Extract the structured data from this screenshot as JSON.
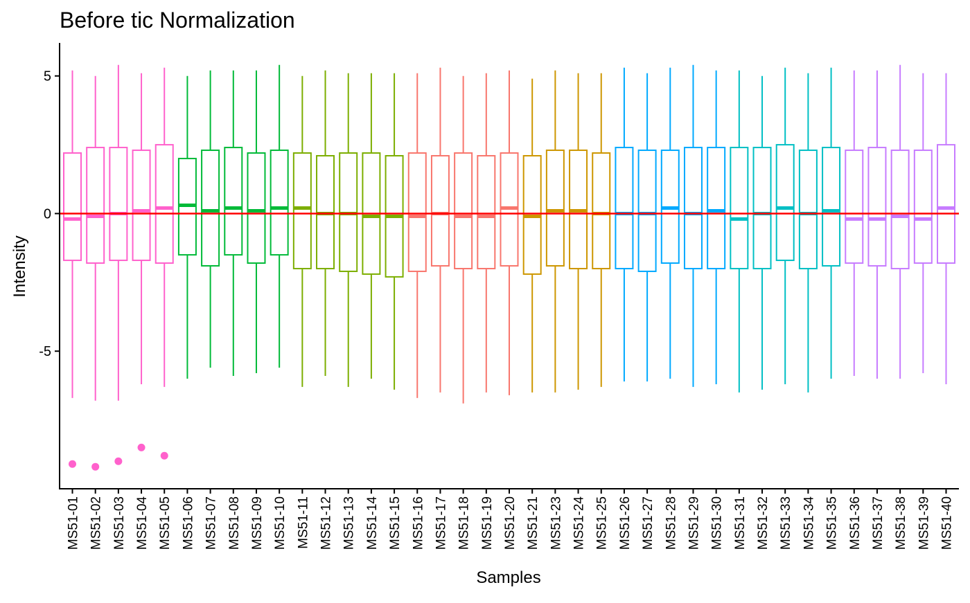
{
  "chart_data": {
    "type": "boxplot",
    "title": "Before tic Normalization",
    "xlabel": "Samples",
    "ylabel": "Intensity",
    "ylim": [
      -10,
      6.2
    ],
    "yticks": [
      5,
      0,
      -5
    ],
    "ytick_labels": [
      "5",
      "0",
      "-5"
    ],
    "reference_line": {
      "y": 0,
      "color": "#ff0000"
    },
    "legend": "none",
    "grid": false,
    "samples": [
      {
        "name": "MS51-01",
        "group": 0,
        "whisker_low": -6.7,
        "q1": -1.7,
        "median": -0.2,
        "q3": 2.2,
        "whisker_high": 5.2,
        "outliers": [
          -9.1
        ]
      },
      {
        "name": "MS51-02",
        "group": 0,
        "whisker_low": -6.8,
        "q1": -1.8,
        "median": -0.1,
        "q3": 2.4,
        "whisker_high": 5.0,
        "outliers": [
          -9.2
        ]
      },
      {
        "name": "MS51-03",
        "group": 0,
        "whisker_low": -6.8,
        "q1": -1.7,
        "median": 0.0,
        "q3": 2.4,
        "whisker_high": 5.4,
        "outliers": [
          -9.0
        ]
      },
      {
        "name": "MS51-04",
        "group": 0,
        "whisker_low": -6.2,
        "q1": -1.7,
        "median": 0.1,
        "q3": 2.3,
        "whisker_high": 5.1,
        "outliers": [
          -8.5
        ]
      },
      {
        "name": "MS51-05",
        "group": 0,
        "whisker_low": -6.3,
        "q1": -1.8,
        "median": 0.2,
        "q3": 2.5,
        "whisker_high": 5.3,
        "outliers": [
          -8.8
        ]
      },
      {
        "name": "MS51-06",
        "group": 1,
        "whisker_low": -6.0,
        "q1": -1.5,
        "median": 0.3,
        "q3": 2.0,
        "whisker_high": 5.0,
        "outliers": []
      },
      {
        "name": "MS51-07",
        "group": 1,
        "whisker_low": -5.6,
        "q1": -1.9,
        "median": 0.1,
        "q3": 2.3,
        "whisker_high": 5.2,
        "outliers": []
      },
      {
        "name": "MS51-08",
        "group": 1,
        "whisker_low": -5.9,
        "q1": -1.5,
        "median": 0.2,
        "q3": 2.4,
        "whisker_high": 5.2,
        "outliers": []
      },
      {
        "name": "MS51-09",
        "group": 1,
        "whisker_low": -5.8,
        "q1": -1.8,
        "median": 0.1,
        "q3": 2.2,
        "whisker_high": 5.2,
        "outliers": []
      },
      {
        "name": "MS51-10",
        "group": 1,
        "whisker_low": -5.6,
        "q1": -1.5,
        "median": 0.2,
        "q3": 2.3,
        "whisker_high": 5.4,
        "outliers": []
      },
      {
        "name": "MS51-11",
        "group": 2,
        "whisker_low": -6.3,
        "q1": -2.0,
        "median": 0.2,
        "q3": 2.2,
        "whisker_high": 5.0,
        "outliers": []
      },
      {
        "name": "MS51-12",
        "group": 2,
        "whisker_low": -5.9,
        "q1": -2.0,
        "median": 0.0,
        "q3": 2.1,
        "whisker_high": 5.2,
        "outliers": []
      },
      {
        "name": "MS51-13",
        "group": 2,
        "whisker_low": -6.3,
        "q1": -2.1,
        "median": 0.0,
        "q3": 2.2,
        "whisker_high": 5.1,
        "outliers": []
      },
      {
        "name": "MS51-14",
        "group": 2,
        "whisker_low": -6.0,
        "q1": -2.2,
        "median": -0.1,
        "q3": 2.2,
        "whisker_high": 5.1,
        "outliers": []
      },
      {
        "name": "MS51-15",
        "group": 2,
        "whisker_low": -6.4,
        "q1": -2.3,
        "median": -0.1,
        "q3": 2.1,
        "whisker_high": 5.1,
        "outliers": []
      },
      {
        "name": "MS51-16",
        "group": 3,
        "whisker_low": -6.7,
        "q1": -2.1,
        "median": -0.1,
        "q3": 2.2,
        "whisker_high": 5.1,
        "outliers": []
      },
      {
        "name": "MS51-17",
        "group": 3,
        "whisker_low": -6.5,
        "q1": -1.9,
        "median": 0.0,
        "q3": 2.1,
        "whisker_high": 5.3,
        "outliers": []
      },
      {
        "name": "MS51-18",
        "group": 3,
        "whisker_low": -6.9,
        "q1": -2.0,
        "median": -0.1,
        "q3": 2.2,
        "whisker_high": 5.0,
        "outliers": []
      },
      {
        "name": "MS51-19",
        "group": 3,
        "whisker_low": -6.5,
        "q1": -2.0,
        "median": -0.1,
        "q3": 2.1,
        "whisker_high": 5.1,
        "outliers": []
      },
      {
        "name": "MS51-20",
        "group": 3,
        "whisker_low": -6.6,
        "q1": -1.9,
        "median": 0.2,
        "q3": 2.2,
        "whisker_high": 5.2,
        "outliers": []
      },
      {
        "name": "MS51-21",
        "group": 4,
        "whisker_low": -6.5,
        "q1": -2.2,
        "median": -0.1,
        "q3": 2.1,
        "whisker_high": 4.9,
        "outliers": []
      },
      {
        "name": "MS51-23",
        "group": 4,
        "whisker_low": -6.5,
        "q1": -1.9,
        "median": 0.1,
        "q3": 2.3,
        "whisker_high": 5.2,
        "outliers": []
      },
      {
        "name": "MS51-24",
        "group": 4,
        "whisker_low": -6.4,
        "q1": -2.0,
        "median": 0.1,
        "q3": 2.3,
        "whisker_high": 5.1,
        "outliers": []
      },
      {
        "name": "MS51-25",
        "group": 4,
        "whisker_low": -6.3,
        "q1": -2.0,
        "median": 0.0,
        "q3": 2.2,
        "whisker_high": 5.1,
        "outliers": []
      },
      {
        "name": "MS51-26",
        "group": 5,
        "whisker_low": -6.1,
        "q1": -2.0,
        "median": 0.0,
        "q3": 2.4,
        "whisker_high": 5.3,
        "outliers": []
      },
      {
        "name": "MS51-27",
        "group": 5,
        "whisker_low": -6.1,
        "q1": -2.1,
        "median": 0.0,
        "q3": 2.3,
        "whisker_high": 5.1,
        "outliers": []
      },
      {
        "name": "MS51-28",
        "group": 5,
        "whisker_low": -6.0,
        "q1": -1.8,
        "median": 0.2,
        "q3": 2.3,
        "whisker_high": 5.3,
        "outliers": []
      },
      {
        "name": "MS51-29",
        "group": 5,
        "whisker_low": -6.3,
        "q1": -2.0,
        "median": 0.0,
        "q3": 2.4,
        "whisker_high": 5.4,
        "outliers": []
      },
      {
        "name": "MS51-30",
        "group": 5,
        "whisker_low": -6.2,
        "q1": -2.0,
        "median": 0.1,
        "q3": 2.4,
        "whisker_high": 5.2,
        "outliers": []
      },
      {
        "name": "MS51-31",
        "group": 6,
        "whisker_low": -6.5,
        "q1": -2.0,
        "median": -0.2,
        "q3": 2.4,
        "whisker_high": 5.2,
        "outliers": []
      },
      {
        "name": "MS51-32",
        "group": 6,
        "whisker_low": -6.4,
        "q1": -2.0,
        "median": 0.0,
        "q3": 2.4,
        "whisker_high": 5.0,
        "outliers": []
      },
      {
        "name": "MS51-33",
        "group": 6,
        "whisker_low": -6.2,
        "q1": -1.7,
        "median": 0.2,
        "q3": 2.5,
        "whisker_high": 5.3,
        "outliers": []
      },
      {
        "name": "MS51-34",
        "group": 6,
        "whisker_low": -6.5,
        "q1": -2.0,
        "median": 0.0,
        "q3": 2.3,
        "whisker_high": 5.1,
        "outliers": []
      },
      {
        "name": "MS51-35",
        "group": 6,
        "whisker_low": -6.0,
        "q1": -1.9,
        "median": 0.1,
        "q3": 2.4,
        "whisker_high": 5.3,
        "outliers": []
      },
      {
        "name": "MS51-36",
        "group": 7,
        "whisker_low": -5.9,
        "q1": -1.8,
        "median": -0.2,
        "q3": 2.3,
        "whisker_high": 5.2,
        "outliers": []
      },
      {
        "name": "MS51-37",
        "group": 7,
        "whisker_low": -6.0,
        "q1": -1.9,
        "median": -0.2,
        "q3": 2.4,
        "whisker_high": 5.2,
        "outliers": []
      },
      {
        "name": "MS51-38",
        "group": 7,
        "whisker_low": -6.0,
        "q1": -2.0,
        "median": -0.1,
        "q3": 2.3,
        "whisker_high": 5.4,
        "outliers": []
      },
      {
        "name": "MS51-39",
        "group": 7,
        "whisker_low": -5.8,
        "q1": -1.8,
        "median": -0.2,
        "q3": 2.3,
        "whisker_high": 5.1,
        "outliers": []
      },
      {
        "name": "MS51-40",
        "group": 7,
        "whisker_low": -6.2,
        "q1": -1.8,
        "median": 0.2,
        "q3": 2.5,
        "whisker_high": 5.1,
        "outliers": []
      }
    ],
    "group_colors": [
      "#FF61CC",
      "#00BA38",
      "#7CAE00",
      "#F8766D",
      "#CD9600",
      "#00A9FF",
      "#00BFC4",
      "#C77CFF"
    ]
  }
}
